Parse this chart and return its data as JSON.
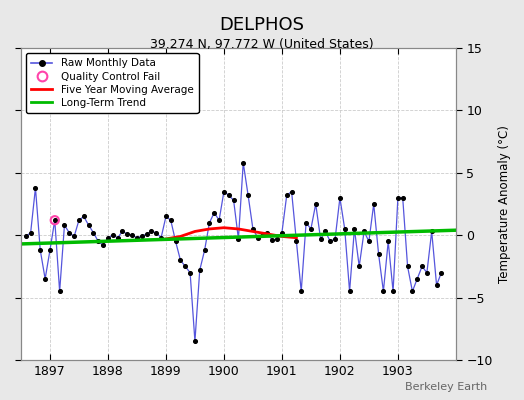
{
  "title": "DELPHOS",
  "subtitle": "39.274 N, 97.772 W (United States)",
  "ylabel": "Temperature Anomaly (°C)",
  "watermark": "Berkeley Earth",
  "xlim": [
    1896.5,
    1904.0
  ],
  "ylim": [
    -10,
    15
  ],
  "yticks": [
    -10,
    -5,
    0,
    5,
    10,
    15
  ],
  "xticks": [
    1897,
    1898,
    1899,
    1900,
    1901,
    1902,
    1903
  ],
  "outer_bg": "#e8e8e8",
  "plot_bg": "#ffffff",
  "raw_color": "#5555dd",
  "raw_marker_color": "#000000",
  "qc_fail_color": "#ff44aa",
  "moving_avg_color": "#ff0000",
  "trend_color": "#00bb00",
  "grid_color": "#cccccc",
  "raw_monthly_x": [
    1896.583,
    1896.667,
    1896.75,
    1896.833,
    1896.917,
    1897.0,
    1897.083,
    1897.167,
    1897.25,
    1897.333,
    1897.417,
    1897.5,
    1897.583,
    1897.667,
    1897.75,
    1897.833,
    1897.917,
    1898.0,
    1898.083,
    1898.167,
    1898.25,
    1898.333,
    1898.417,
    1898.5,
    1898.583,
    1898.667,
    1898.75,
    1898.833,
    1898.917,
    1899.0,
    1899.083,
    1899.167,
    1899.25,
    1899.333,
    1899.417,
    1899.5,
    1899.583,
    1899.667,
    1899.75,
    1899.833,
    1899.917,
    1900.0,
    1900.083,
    1900.167,
    1900.25,
    1900.333,
    1900.417,
    1900.5,
    1900.583,
    1900.667,
    1900.75,
    1900.833,
    1900.917,
    1901.0,
    1901.083,
    1901.167,
    1901.25,
    1901.333,
    1901.417,
    1901.5,
    1901.583,
    1901.667,
    1901.75,
    1901.833,
    1901.917,
    1902.0,
    1902.083,
    1902.167,
    1902.25,
    1902.333,
    1902.417,
    1902.5,
    1902.583,
    1902.667,
    1902.75,
    1902.833,
    1902.917,
    1903.0,
    1903.083,
    1903.167,
    1903.25,
    1903.333,
    1903.417,
    1903.5,
    1903.583,
    1903.667,
    1903.75
  ],
  "raw_monthly_y": [
    -0.1,
    0.2,
    3.8,
    -1.2,
    -3.5,
    -1.2,
    1.2,
    -4.5,
    0.8,
    0.2,
    -0.1,
    1.2,
    1.5,
    0.8,
    0.2,
    -0.5,
    -0.8,
    -0.2,
    0.0,
    -0.2,
    0.3,
    0.1,
    0.0,
    -0.2,
    -0.1,
    0.1,
    0.3,
    0.2,
    -0.2,
    1.5,
    1.2,
    -0.5,
    -2.0,
    -2.5,
    -3.0,
    -8.5,
    -2.8,
    -1.2,
    1.0,
    1.8,
    1.2,
    3.5,
    3.2,
    2.8,
    -0.3,
    5.8,
    3.2,
    0.5,
    -0.2,
    0.1,
    0.2,
    -0.4,
    -0.3,
    0.2,
    3.2,
    3.5,
    -0.5,
    -4.5,
    1.0,
    0.5,
    2.5,
    -0.3,
    0.3,
    -0.5,
    -0.3,
    3.0,
    0.5,
    -4.5,
    0.5,
    -2.5,
    0.3,
    -0.5,
    2.5,
    -1.5,
    -4.5,
    -0.5,
    -4.5,
    3.0,
    3.0,
    -2.5,
    -4.5,
    -3.5,
    -2.5,
    -3.0,
    0.3,
    -4.0,
    -3.0
  ],
  "qc_fail_x": [
    1897.083
  ],
  "qc_fail_y": [
    1.2
  ],
  "moving_avg_x": [
    1899.0,
    1899.25,
    1899.5,
    1899.75,
    1900.0,
    1900.25,
    1900.5,
    1900.75,
    1901.0,
    1901.25
  ],
  "moving_avg_y": [
    -0.3,
    -0.1,
    0.3,
    0.5,
    0.6,
    0.5,
    0.3,
    0.1,
    -0.1,
    -0.2
  ],
  "trend_x": [
    1896.5,
    1904.0
  ],
  "trend_y": [
    -0.7,
    0.4
  ],
  "legend_entries": [
    "Raw Monthly Data",
    "Quality Control Fail",
    "Five Year Moving Average",
    "Long-Term Trend"
  ]
}
